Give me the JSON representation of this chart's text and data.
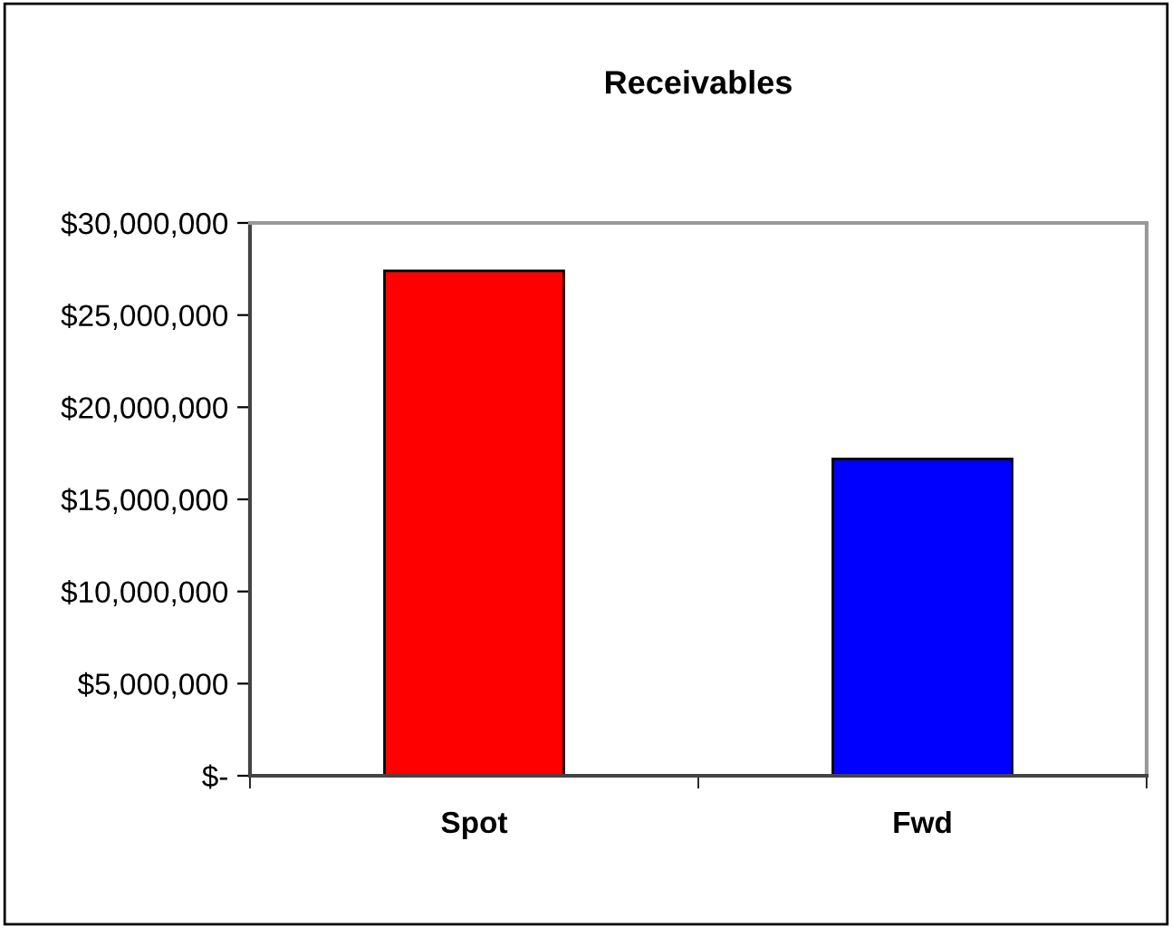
{
  "chart_data": {
    "type": "bar",
    "title": "Receivables",
    "categories": [
      "Spot",
      "Fwd"
    ],
    "values": [
      27400000,
      17200000
    ],
    "colors": [
      "#ff0000",
      "#0000ff"
    ],
    "ylim": [
      0,
      30000000
    ],
    "yticks": [
      {
        "value": 0,
        "label": "$-"
      },
      {
        "value": 5000000,
        "label": "$5,000,000"
      },
      {
        "value": 10000000,
        "label": "$10,000,000"
      },
      {
        "value": 15000000,
        "label": "$15,000,000"
      },
      {
        "value": 20000000,
        "label": "$20,000,000"
      },
      {
        "value": 25000000,
        "label": "$25,000,000"
      },
      {
        "value": 30000000,
        "label": "$30,000,000"
      }
    ],
    "grid": false,
    "legend": false
  }
}
